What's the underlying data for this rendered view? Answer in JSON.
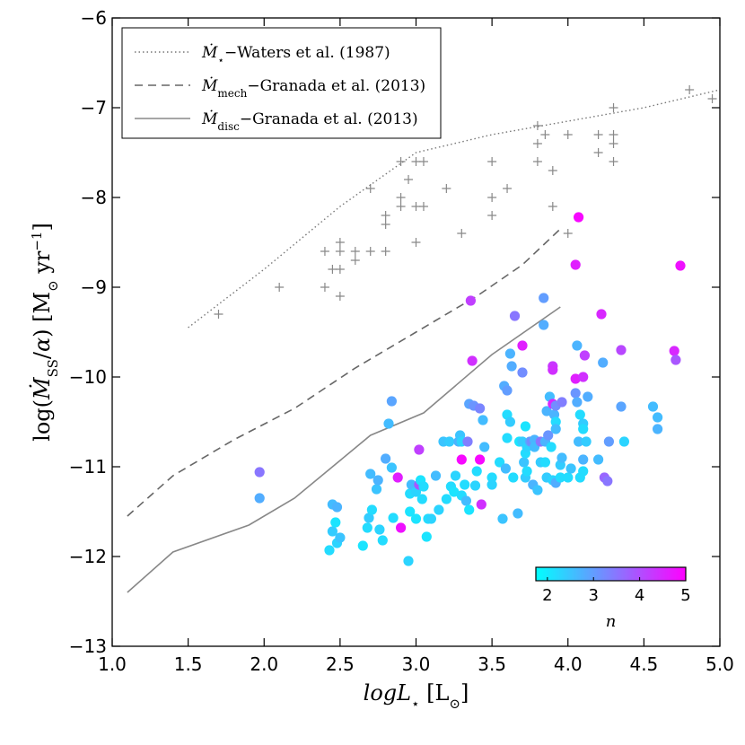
{
  "chart_data": {
    "type": "scatter",
    "xlabel": "logL⋆ [L⊙]",
    "ylabel": "log(Ṁ_SS/α) [M⊙ yr⁻¹]",
    "xlim": [
      1.0,
      5.0
    ],
    "ylim": [
      -13,
      -6
    ],
    "xticks": [
      "1.0",
      "1.5",
      "2.0",
      "2.5",
      "3.0",
      "3.5",
      "4.0",
      "4.5",
      "5.0"
    ],
    "yticks": [
      "−13",
      "−12",
      "−11",
      "−10",
      "−9",
      "−8",
      "−7",
      "−6"
    ],
    "grid": false,
    "legend_position": "top-left",
    "lines": [
      {
        "name": "Ṁ⋆−Waters et al. (1987)",
        "style": "dotted",
        "color": "#777777",
        "x": [
          1.5,
          2.0,
          2.5,
          3.0,
          3.5,
          4.0,
          4.5,
          5.0
        ],
        "y": [
          -9.45,
          -8.8,
          -8.1,
          -7.5,
          -7.3,
          -7.15,
          -7.0,
          -6.8
        ]
      },
      {
        "name": "Ṁ_mech−Granada et al. (2013)",
        "style": "dashed",
        "color": "#666666",
        "x": [
          1.1,
          1.4,
          1.8,
          2.2,
          2.6,
          3.0,
          3.4,
          3.7,
          3.95
        ],
        "y": [
          -11.55,
          -11.1,
          -10.7,
          -10.35,
          -9.9,
          -9.5,
          -9.1,
          -8.75,
          -8.35
        ]
      },
      {
        "name": "Ṁ_disc−Granada et al. (2013)",
        "style": "solid",
        "color": "#888888",
        "x": [
          1.1,
          1.4,
          1.9,
          2.2,
          2.7,
          3.05,
          3.5,
          3.95
        ],
        "y": [
          -12.4,
          -11.95,
          -11.65,
          -11.35,
          -10.65,
          -10.4,
          -9.75,
          -9.22
        ]
      }
    ],
    "crosses": {
      "color": "#888888",
      "points": [
        [
          1.7,
          -9.3
        ],
        [
          2.1,
          -9.0
        ],
        [
          2.4,
          -9.0
        ],
        [
          2.4,
          -8.6
        ],
        [
          2.45,
          -8.8
        ],
        [
          2.5,
          -8.8
        ],
        [
          2.5,
          -9.1
        ],
        [
          2.5,
          -8.6
        ],
        [
          2.5,
          -8.5
        ],
        [
          2.6,
          -8.6
        ],
        [
          2.6,
          -8.7
        ],
        [
          2.7,
          -8.6
        ],
        [
          2.7,
          -7.9
        ],
        [
          2.8,
          -8.6
        ],
        [
          2.8,
          -8.2
        ],
        [
          2.8,
          -8.3
        ],
        [
          2.9,
          -8.1
        ],
        [
          2.9,
          -7.6
        ],
        [
          2.95,
          -7.8
        ],
        [
          2.9,
          -8.0
        ],
        [
          3.0,
          -8.1
        ],
        [
          3.0,
          -8.5
        ],
        [
          3.0,
          -7.6
        ],
        [
          3.05,
          -7.6
        ],
        [
          3.05,
          -8.1
        ],
        [
          3.2,
          -7.9
        ],
        [
          3.3,
          -8.4
        ],
        [
          3.5,
          -8.0
        ],
        [
          3.5,
          -8.2
        ],
        [
          3.5,
          -7.6
        ],
        [
          3.6,
          -7.9
        ],
        [
          3.8,
          -7.2
        ],
        [
          3.8,
          -7.4
        ],
        [
          3.8,
          -7.6
        ],
        [
          3.85,
          -7.3
        ],
        [
          3.9,
          -7.7
        ],
        [
          3.9,
          -8.1
        ],
        [
          4.0,
          -8.4
        ],
        [
          4.0,
          -7.3
        ],
        [
          4.2,
          -7.3
        ],
        [
          4.2,
          -7.5
        ],
        [
          4.3,
          -7.0
        ],
        [
          4.3,
          -7.3
        ],
        [
          4.3,
          -7.4
        ],
        [
          4.3,
          -7.6
        ],
        [
          4.8,
          -6.8
        ],
        [
          4.95,
          -6.9
        ]
      ]
    },
    "colorbar": {
      "label": "n",
      "range": [
        1.75,
        5.0
      ],
      "ticks": [
        "2",
        "3",
        "4",
        "5"
      ],
      "colormap": "cool",
      "start_color": "#00ffff",
      "end_color": "#ff00ff"
    },
    "scatter": {
      "points": [
        [
          1.97,
          -11.06,
          3.5
        ],
        [
          1.97,
          -11.35,
          2.8
        ],
        [
          2.43,
          -11.93,
          2.2
        ],
        [
          2.45,
          -11.42,
          2.6
        ],
        [
          2.45,
          -11.72,
          2.4
        ],
        [
          2.47,
          -11.62,
          2.1
        ],
        [
          2.48,
          -11.45,
          2.7
        ],
        [
          2.48,
          -11.85,
          2.3
        ],
        [
          2.5,
          -11.79,
          2.5
        ],
        [
          2.65,
          -11.88,
          2.1
        ],
        [
          2.68,
          -11.68,
          2.2
        ],
        [
          2.69,
          -11.57,
          2.4
        ],
        [
          2.7,
          -11.08,
          2.6
        ],
        [
          2.71,
          -11.48,
          2.2
        ],
        [
          2.74,
          -11.25,
          2.5
        ],
        [
          2.75,
          -11.15,
          2.7
        ],
        [
          2.76,
          -11.7,
          2.3
        ],
        [
          2.78,
          -11.82,
          2.2
        ],
        [
          2.8,
          -10.91,
          2.8
        ],
        [
          2.82,
          -10.52,
          2.6
        ],
        [
          2.84,
          -11.01,
          2.5
        ],
        [
          2.84,
          -10.27,
          2.9
        ],
        [
          2.85,
          -11.57,
          2.2
        ],
        [
          2.88,
          -11.12,
          4.6
        ],
        [
          2.9,
          -11.68,
          4.8
        ],
        [
          2.95,
          -12.05,
          2.3
        ],
        [
          2.96,
          -11.3,
          2.2
        ],
        [
          2.96,
          -11.5,
          2.1
        ],
        [
          2.97,
          -11.2,
          2.6
        ],
        [
          3.0,
          -11.28,
          2.3
        ],
        [
          3.0,
          -11.58,
          2.1
        ],
        [
          3.02,
          -11.2,
          3.9
        ],
        [
          3.02,
          -10.81,
          4.2
        ],
        [
          3.03,
          -11.15,
          2.1
        ],
        [
          3.04,
          -11.36,
          2.2
        ],
        [
          3.05,
          -11.22,
          2.2
        ],
        [
          3.07,
          -11.78,
          2.1
        ],
        [
          3.08,
          -11.58,
          2.2
        ],
        [
          3.1,
          -11.58,
          2.3
        ],
        [
          3.13,
          -11.1,
          2.6
        ],
        [
          3.15,
          -11.48,
          2.3
        ],
        [
          3.18,
          -10.72,
          2.5
        ],
        [
          3.2,
          -11.36,
          2.2
        ],
        [
          3.22,
          -10.72,
          2.4
        ],
        [
          3.23,
          -11.22,
          2.2
        ],
        [
          3.25,
          -11.28,
          2.1
        ],
        [
          3.26,
          -11.1,
          2.3
        ],
        [
          3.28,
          -10.72,
          2.7
        ],
        [
          3.29,
          -10.65,
          2.5
        ],
        [
          3.3,
          -11.32,
          2.2
        ],
        [
          3.3,
          -10.92,
          4.9
        ],
        [
          3.3,
          -10.72,
          2.3
        ],
        [
          3.32,
          -11.2,
          2.2
        ],
        [
          3.33,
          -11.38,
          2.6
        ],
        [
          3.34,
          -10.72,
          3.4
        ],
        [
          3.35,
          -10.3,
          2.9
        ],
        [
          3.35,
          -11.48,
          2.1
        ],
        [
          3.36,
          -9.15,
          4.2
        ],
        [
          3.37,
          -9.82,
          4.4
        ],
        [
          3.38,
          -10.32,
          3.1
        ],
        [
          3.39,
          -11.21,
          2.3
        ],
        [
          3.4,
          -11.05,
          2.2
        ],
        [
          3.42,
          -10.35,
          3.3
        ],
        [
          3.43,
          -11.42,
          4.4
        ],
        [
          3.44,
          -10.48,
          2.6
        ],
        [
          3.45,
          -10.78,
          2.6
        ],
        [
          3.5,
          -11.12,
          2.2
        ],
        [
          3.5,
          -11.2,
          2.3
        ],
        [
          3.55,
          -10.95,
          2.2
        ],
        [
          3.57,
          -11.58,
          2.5
        ],
        [
          3.58,
          -10.1,
          2.8
        ],
        [
          3.59,
          -11.02,
          2.6
        ],
        [
          3.6,
          -10.42,
          2.2
        ],
        [
          3.6,
          -10.15,
          3.0
        ],
        [
          3.6,
          -10.68,
          2.2
        ],
        [
          3.62,
          -9.74,
          2.7
        ],
        [
          3.62,
          -10.5,
          2.4
        ],
        [
          3.63,
          -9.88,
          2.8
        ],
        [
          3.64,
          -11.12,
          2.2
        ],
        [
          3.65,
          -9.32,
          3.5
        ],
        [
          3.67,
          -11.52,
          2.6
        ],
        [
          3.68,
          -10.72,
          2.1
        ],
        [
          3.7,
          -9.95,
          3.2
        ],
        [
          3.7,
          -9.65,
          4.6
        ],
        [
          3.7,
          -10.72,
          2.4
        ],
        [
          3.71,
          -10.95,
          2.5
        ],
        [
          3.72,
          -10.55,
          2.1
        ],
        [
          3.72,
          -10.85,
          2.2
        ],
        [
          3.72,
          -11.12,
          2.4
        ],
        [
          3.73,
          -10.78,
          2.3
        ],
        [
          3.73,
          -11.05,
          2.2
        ],
        [
          3.75,
          -10.72,
          2.8
        ],
        [
          3.76,
          -10.72,
          3.2
        ],
        [
          3.77,
          -11.2,
          2.7
        ],
        [
          3.78,
          -10.7,
          2.7
        ],
        [
          3.78,
          -10.78,
          2.6
        ],
        [
          3.8,
          -11.26,
          2.5
        ],
        [
          3.82,
          -10.95,
          2.4
        ],
        [
          3.82,
          -10.72,
          3.5
        ],
        [
          3.84,
          -9.12,
          3.0
        ],
        [
          3.84,
          -9.42,
          2.8
        ],
        [
          3.85,
          -10.72,
          2.7
        ],
        [
          3.85,
          -10.95,
          2.2
        ],
        [
          3.86,
          -11.12,
          2.4
        ],
        [
          3.86,
          -10.38,
          2.7
        ],
        [
          3.87,
          -10.65,
          3.1
        ],
        [
          3.88,
          -10.22,
          2.6
        ],
        [
          3.89,
          -10.78,
          2.2
        ],
        [
          3.9,
          -9.88,
          4.3
        ],
        [
          3.9,
          -9.92,
          4.4
        ],
        [
          3.9,
          -10.3,
          4.5
        ],
        [
          3.9,
          -11.15,
          2.3
        ],
        [
          3.91,
          -10.42,
          2.7
        ],
        [
          3.92,
          -10.5,
          2.2
        ],
        [
          3.92,
          -11.18,
          2.8
        ],
        [
          3.92,
          -10.58,
          2.6
        ],
        [
          3.92,
          -10.32,
          3.2
        ],
        [
          3.95,
          -11.12,
          2.2
        ],
        [
          3.95,
          -10.98,
          2.4
        ],
        [
          3.96,
          -10.9,
          2.6
        ],
        [
          3.96,
          -10.28,
          3.4
        ],
        [
          4.0,
          -11.12,
          2.2
        ],
        [
          4.02,
          -11.02,
          2.5
        ],
        [
          4.05,
          -8.75,
          4.6
        ],
        [
          4.05,
          -10.02,
          4.6
        ],
        [
          4.05,
          -10.18,
          3.1
        ],
        [
          4.06,
          -9.65,
          2.7
        ],
        [
          4.06,
          -10.28,
          2.8
        ],
        [
          4.07,
          -8.22,
          4.9
        ],
        [
          4.07,
          -10.72,
          2.6
        ],
        [
          4.08,
          -11.12,
          2.2
        ],
        [
          4.08,
          -10.42,
          2.2
        ],
        [
          4.1,
          -10.0,
          4.4
        ],
        [
          4.1,
          -10.52,
          2.4
        ],
        [
          4.1,
          -10.58,
          2.2
        ],
        [
          4.1,
          -10.92,
          2.7
        ],
        [
          4.1,
          -11.05,
          2.2
        ],
        [
          4.11,
          -9.76,
          4.2
        ],
        [
          4.12,
          -10.72,
          2.4
        ],
        [
          4.13,
          -10.22,
          2.8
        ],
        [
          4.2,
          -10.92,
          2.6
        ],
        [
          4.22,
          -9.3,
          4.5
        ],
        [
          4.23,
          -9.84,
          2.8
        ],
        [
          4.24,
          -11.12,
          3.7
        ],
        [
          4.26,
          -11.16,
          3.5
        ],
        [
          4.27,
          -10.72,
          3.0
        ],
        [
          4.35,
          -9.7,
          4.1
        ],
        [
          4.35,
          -10.33,
          2.9
        ],
        [
          4.37,
          -10.72,
          2.3
        ],
        [
          4.56,
          -10.33,
          2.6
        ],
        [
          4.59,
          -10.45,
          2.6
        ],
        [
          4.59,
          -10.58,
          2.7
        ],
        [
          4.7,
          -9.71,
          4.5
        ],
        [
          4.71,
          -9.81,
          3.9
        ],
        [
          4.74,
          -8.76,
          4.8
        ],
        [
          3.42,
          -10.92,
          4.9
        ]
      ]
    }
  }
}
